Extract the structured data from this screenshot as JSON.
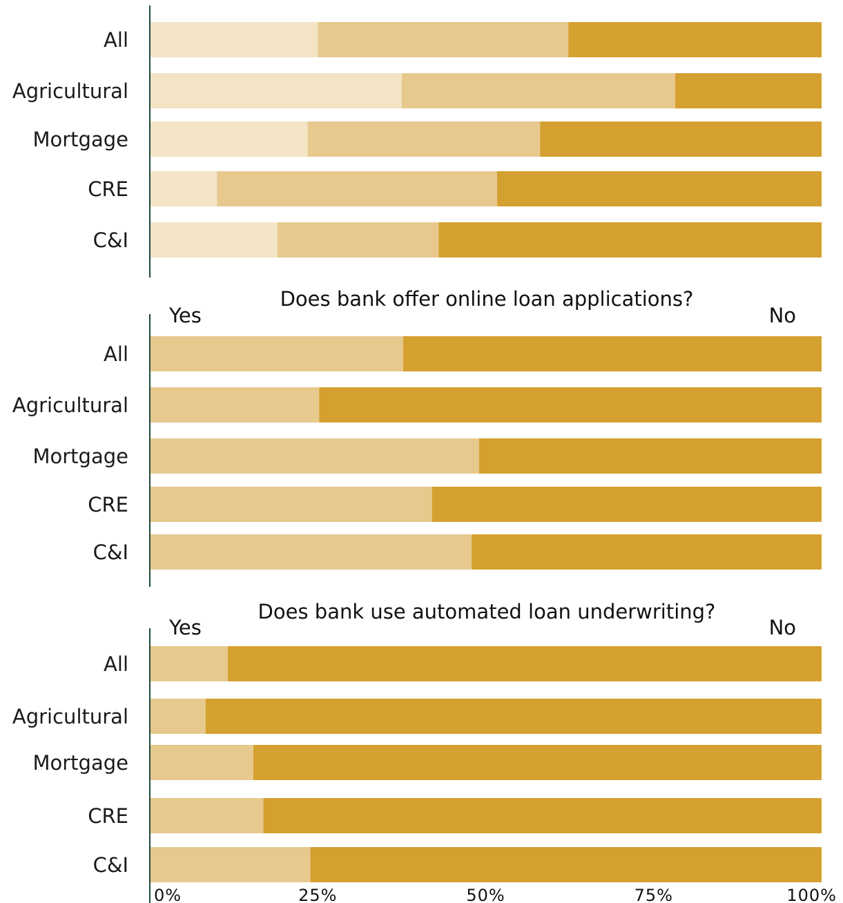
{
  "chart_data": [
    {
      "type": "bar",
      "orientation": "horizontal",
      "stacked": true,
      "title": "",
      "categories": [
        "All",
        "Agricultural",
        "Mortgage",
        "CRE",
        "C&I"
      ],
      "series": [
        {
          "values": [
            25,
            37.5,
            23.5,
            10,
            19
          ]
        },
        {
          "values": [
            37.3,
            40.7,
            34.6,
            41.7,
            24
          ]
        },
        {
          "values": [
            37.7,
            21.8,
            41.9,
            48.3,
            57
          ]
        }
      ],
      "xlim": [
        0,
        100
      ],
      "legend": "none"
    },
    {
      "type": "bar",
      "orientation": "horizontal",
      "stacked": true,
      "title": "Does bank offer online loan applications?",
      "left_label": "Yes",
      "right_label": "No",
      "categories": [
        "All",
        "Agricultural",
        "Mortgage",
        "CRE",
        "C&I"
      ],
      "series": [
        {
          "name": "Yes",
          "values": [
            37.7,
            25.2,
            49,
            42,
            47.9
          ]
        },
        {
          "name": "No",
          "values": [
            62.3,
            74.8,
            51,
            58,
            52.1
          ]
        }
      ],
      "xlim": [
        0,
        100
      ],
      "legend": "none"
    },
    {
      "type": "bar",
      "orientation": "horizontal",
      "stacked": true,
      "title": "Does bank use automated loan underwriting?",
      "left_label": "Yes",
      "right_label": "No",
      "categories": [
        "All",
        "Agricultural",
        "Mortgage",
        "CRE",
        "C&I"
      ],
      "series": [
        {
          "name": "Yes",
          "values": [
            11.6,
            8.3,
            15.4,
            16.9,
            23.9
          ]
        },
        {
          "name": "No",
          "values": [
            88.4,
            91.7,
            84.6,
            83.1,
            76.1
          ]
        }
      ],
      "xlim": [
        0,
        100
      ],
      "xticks": [
        "0%",
        "25%",
        "50%",
        "75%",
        "100%"
      ],
      "legend": "none"
    }
  ],
  "colors": {
    "light": "#f2e4c5",
    "medium": "#e7c98e",
    "dark": "#d4a030",
    "axis": "#1f4a3d"
  }
}
